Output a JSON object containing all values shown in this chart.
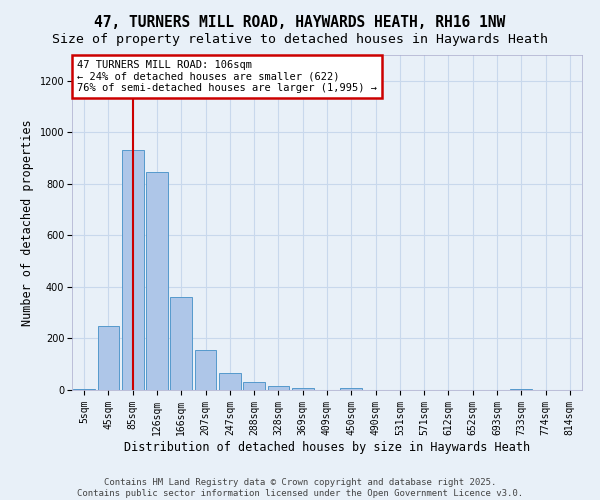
{
  "title": "47, TURNERS MILL ROAD, HAYWARDS HEATH, RH16 1NW",
  "subtitle": "Size of property relative to detached houses in Haywards Heath",
  "xlabel": "Distribution of detached houses by size in Haywards Heath",
  "ylabel": "Number of detached properties",
  "categories": [
    "5sqm",
    "45sqm",
    "85sqm",
    "126sqm",
    "166sqm",
    "207sqm",
    "247sqm",
    "288sqm",
    "328sqm",
    "369sqm",
    "409sqm",
    "450sqm",
    "490sqm",
    "531sqm",
    "571sqm",
    "612sqm",
    "652sqm",
    "693sqm",
    "733sqm",
    "774sqm",
    "814sqm"
  ],
  "values": [
    5,
    248,
    930,
    845,
    360,
    155,
    65,
    32,
    14,
    8,
    0,
    8,
    0,
    0,
    0,
    0,
    0,
    0,
    5,
    0,
    0
  ],
  "bar_color": "#aec6e8",
  "bar_edge_color": "#5599cc",
  "grid_color": "#c8d8ec",
  "background_color": "#e8f0f8",
  "property_line_index": 2,
  "annotation_text": "47 TURNERS MILL ROAD: 106sqm\n← 24% of detached houses are smaller (622)\n76% of semi-detached houses are larger (1,995) →",
  "annotation_box_color": "#ffffff",
  "annotation_box_edge_color": "#cc0000",
  "property_line_color": "#cc0000",
  "ylim": [
    0,
    1300
  ],
  "yticks": [
    0,
    200,
    400,
    600,
    800,
    1000,
    1200
  ],
  "footer": "Contains HM Land Registry data © Crown copyright and database right 2025.\nContains public sector information licensed under the Open Government Licence v3.0.",
  "title_fontsize": 10.5,
  "subtitle_fontsize": 9.5,
  "xlabel_fontsize": 8.5,
  "ylabel_fontsize": 8.5,
  "tick_fontsize": 7,
  "footer_fontsize": 6.5,
  "annotation_fontsize": 7.5
}
